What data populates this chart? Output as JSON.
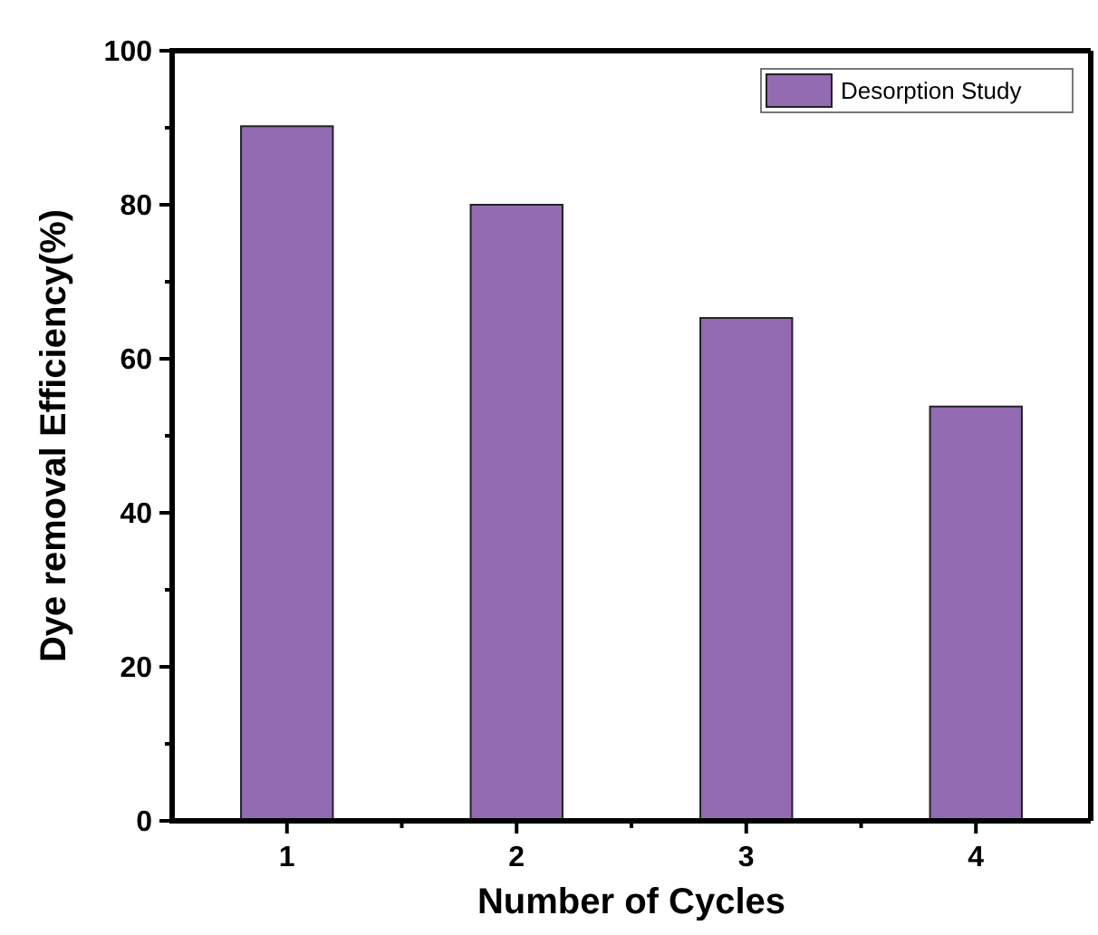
{
  "chart_data": {
    "type": "bar",
    "xlabel": "Number of Cycles",
    "ylabel": "Dye removal Efficiency(%)",
    "categories": [
      "1",
      "2",
      "3",
      "4"
    ],
    "series": [
      {
        "name": "Desorption Study",
        "color": "#926bb3",
        "values": [
          90.2,
          80,
          65.3,
          53.8
        ]
      }
    ],
    "ylim": [
      0,
      100
    ],
    "yticks": [
      0,
      {
        "value": 10,
        "label": null
      },
      20,
      {
        "value": 30,
        "label": null
      },
      40,
      {
        "value": 50,
        "label": null
      },
      60,
      {
        "value": 70,
        "label": null
      },
      80,
      {
        "value": 90,
        "label": null
      },
      100
    ],
    "legend": "top right"
  }
}
